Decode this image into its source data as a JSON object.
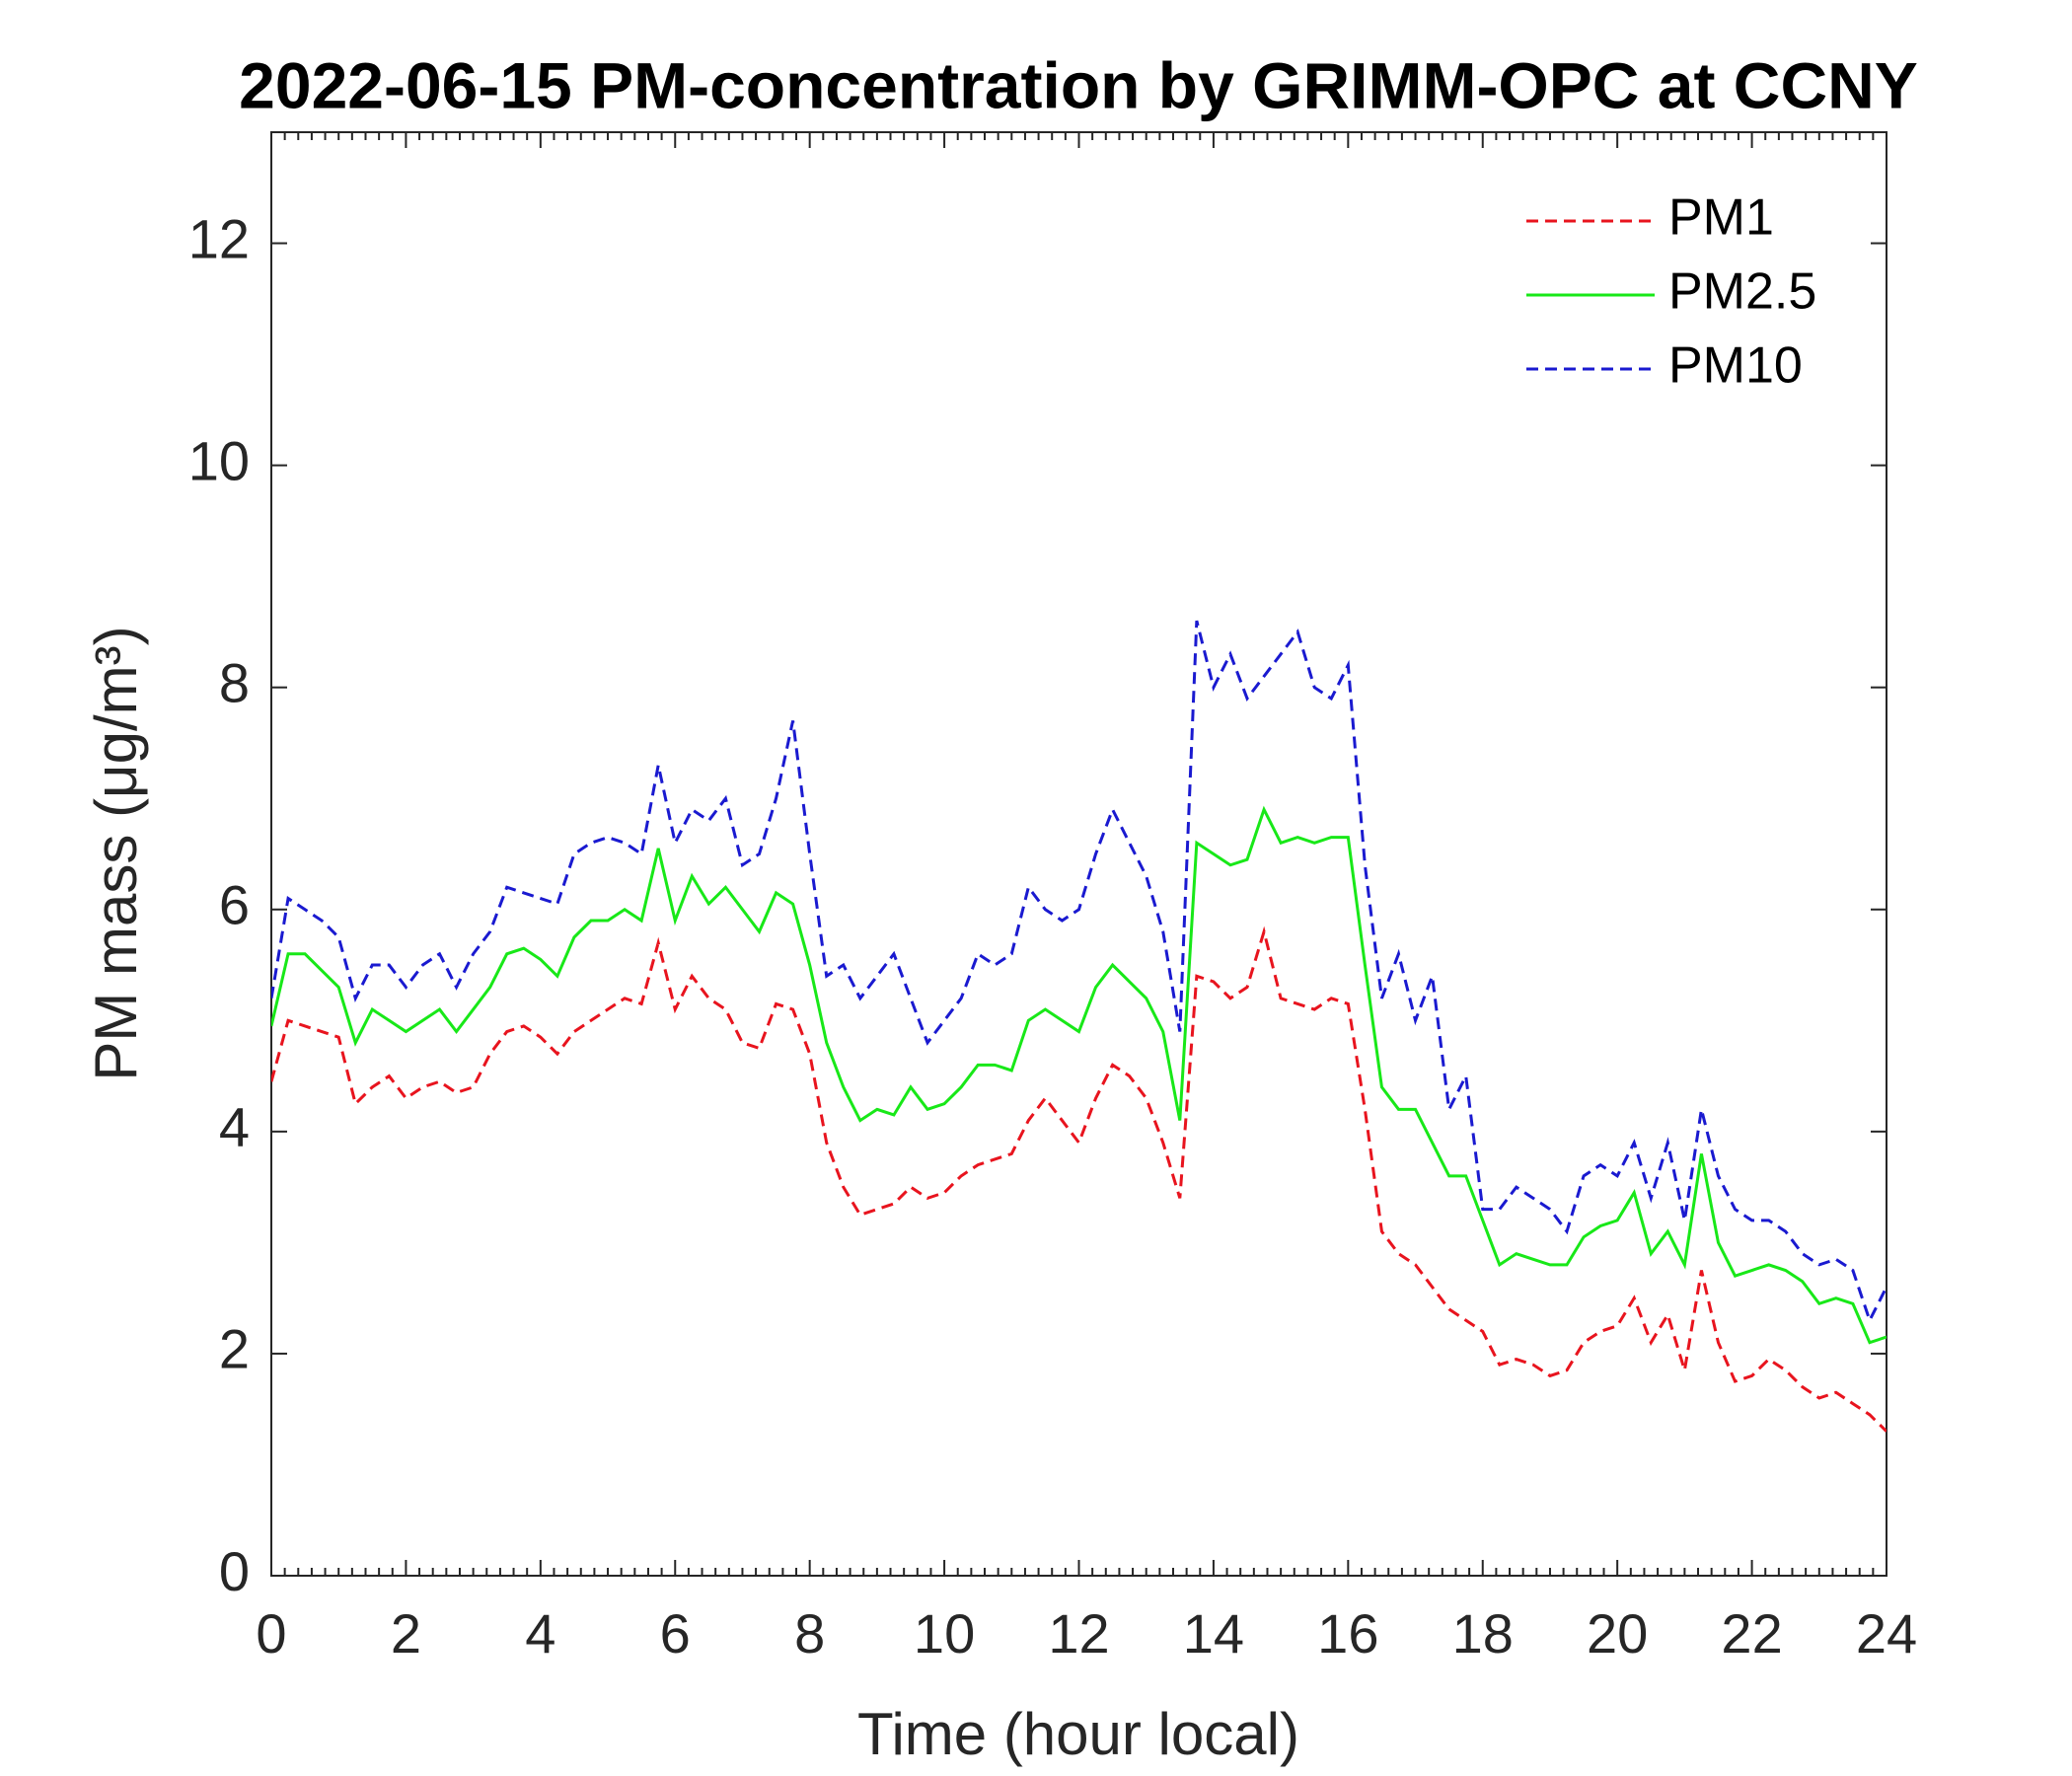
{
  "chart_data": {
    "type": "line",
    "title": "2022-06-15 PM-concentration by GRIMM-OPC at CCNY",
    "xlabel": "Time (hour local)",
    "ylabel": "PM mass (μg/m³)",
    "xlim": [
      0,
      24
    ],
    "ylim": [
      0,
      13
    ],
    "xticks": [
      0,
      2,
      4,
      6,
      8,
      10,
      12,
      14,
      16,
      18,
      20,
      22,
      24
    ],
    "yticks": [
      0,
      2,
      4,
      6,
      8,
      10,
      12
    ],
    "grid": false,
    "legend": "upper right",
    "x": [
      0,
      0.25,
      0.5,
      0.75,
      1,
      1.25,
      1.5,
      1.75,
      2,
      2.25,
      2.5,
      2.75,
      3,
      3.25,
      3.5,
      3.75,
      4,
      4.25,
      4.5,
      4.75,
      5,
      5.25,
      5.5,
      5.75,
      6,
      6.25,
      6.5,
      6.75,
      7,
      7.25,
      7.5,
      7.75,
      8,
      8.25,
      8.5,
      8.75,
      9,
      9.25,
      9.5,
      9.75,
      10,
      10.25,
      10.5,
      10.75,
      11,
      11.25,
      11.5,
      11.75,
      12,
      12.25,
      12.5,
      12.75,
      13,
      13.25,
      13.5,
      13.75,
      14,
      14.25,
      14.5,
      14.75,
      15,
      15.25,
      15.5,
      15.75,
      16,
      16.25,
      16.5,
      16.75,
      17,
      17.25,
      17.5,
      17.75,
      18,
      18.25,
      18.5,
      18.75,
      19,
      19.25,
      19.5,
      19.75,
      20,
      20.25,
      20.5,
      20.75,
      21,
      21.25,
      21.5,
      21.75,
      22,
      22.25,
      22.5,
      22.75,
      23,
      23.25,
      23.5,
      23.75,
      24
    ],
    "series": [
      {
        "name": "PM1",
        "color": "#e8141e",
        "linestyle": "dashed",
        "values": [
          4.45,
          5.0,
          4.95,
          4.9,
          4.85,
          4.25,
          4.4,
          4.5,
          4.3,
          4.4,
          4.45,
          4.35,
          4.4,
          4.7,
          4.9,
          4.95,
          4.85,
          4.7,
          4.9,
          5.0,
          5.1,
          5.2,
          5.15,
          5.7,
          5.1,
          5.4,
          5.2,
          5.1,
          4.8,
          4.75,
          5.15,
          5.1,
          4.7,
          3.9,
          3.5,
          3.25,
          3.3,
          3.35,
          3.5,
          3.4,
          3.45,
          3.6,
          3.7,
          3.75,
          3.8,
          4.1,
          4.3,
          4.1,
          3.9,
          4.3,
          4.6,
          4.5,
          4.3,
          3.9,
          3.4,
          5.4,
          5.35,
          5.2,
          5.3,
          5.8,
          5.2,
          5.15,
          5.1,
          5.2,
          5.15,
          4.2,
          3.1,
          2.9,
          2.8,
          2.6,
          2.4,
          2.3,
          2.2,
          1.9,
          1.95,
          1.9,
          1.8,
          1.85,
          2.1,
          2.2,
          2.25,
          2.5,
          2.1,
          2.35,
          1.85,
          2.75,
          2.1,
          1.75,
          1.8,
          1.95,
          1.85,
          1.7,
          1.6,
          1.65,
          1.55,
          1.45,
          1.3
        ]
      },
      {
        "name": "PM2.5",
        "color": "#18e818",
        "linestyle": "solid",
        "values": [
          4.95,
          5.6,
          5.6,
          5.45,
          5.3,
          4.8,
          5.1,
          5.0,
          4.9,
          5.0,
          5.1,
          4.9,
          5.1,
          5.3,
          5.6,
          5.65,
          5.55,
          5.4,
          5.75,
          5.9,
          5.9,
          6.0,
          5.9,
          6.55,
          5.9,
          6.3,
          6.05,
          6.2,
          6.0,
          5.8,
          6.15,
          6.05,
          5.5,
          4.8,
          4.4,
          4.1,
          4.2,
          4.15,
          4.4,
          4.2,
          4.25,
          4.4,
          4.6,
          4.6,
          4.55,
          5.0,
          5.1,
          5.0,
          4.9,
          5.3,
          5.5,
          5.35,
          5.2,
          4.9,
          4.1,
          6.6,
          6.5,
          6.4,
          6.45,
          6.9,
          6.6,
          6.65,
          6.6,
          6.65,
          6.65,
          5.5,
          4.4,
          4.2,
          4.2,
          3.9,
          3.6,
          3.6,
          3.2,
          2.8,
          2.9,
          2.85,
          2.8,
          2.8,
          3.05,
          3.15,
          3.2,
          3.45,
          2.9,
          3.1,
          2.8,
          3.8,
          3.0,
          2.7,
          2.75,
          2.8,
          2.75,
          2.65,
          2.45,
          2.5,
          2.45,
          2.1,
          2.15
        ]
      },
      {
        "name": "PM10",
        "color": "#1a1ad0",
        "linestyle": "dashed",
        "values": [
          5.2,
          6.1,
          6.0,
          5.9,
          5.75,
          5.2,
          5.5,
          5.5,
          5.3,
          5.5,
          5.6,
          5.3,
          5.6,
          5.8,
          6.2,
          6.15,
          6.1,
          6.05,
          6.5,
          6.6,
          6.65,
          6.6,
          6.5,
          7.3,
          6.6,
          6.9,
          6.8,
          7.0,
          6.4,
          6.5,
          7.0,
          7.7,
          6.5,
          5.4,
          5.5,
          5.2,
          5.4,
          5.6,
          5.2,
          4.8,
          5.0,
          5.2,
          5.6,
          5.5,
          5.6,
          6.2,
          6.0,
          5.9,
          6.0,
          6.5,
          6.9,
          6.6,
          6.3,
          5.8,
          4.9,
          8.6,
          8.0,
          8.3,
          7.9,
          8.1,
          8.3,
          8.5,
          8.0,
          7.9,
          8.2,
          6.4,
          5.2,
          5.6,
          5.0,
          5.4,
          4.2,
          4.5,
          3.3,
          3.3,
          3.5,
          3.4,
          3.3,
          3.1,
          3.6,
          3.7,
          3.6,
          3.9,
          3.4,
          3.9,
          3.2,
          4.2,
          3.6,
          3.3,
          3.2,
          3.2,
          3.1,
          2.9,
          2.8,
          2.85,
          2.75,
          2.3,
          2.6
        ]
      }
    ]
  }
}
